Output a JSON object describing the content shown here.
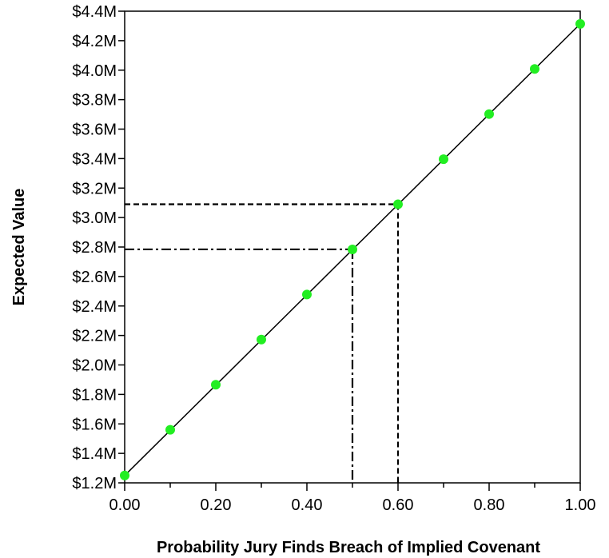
{
  "chart_data": {
    "type": "scatter",
    "title": "",
    "xlabel": "Probability Jury Finds Breach of Implied Covenant",
    "ylabel": "Expected Value",
    "xlim": [
      0,
      1
    ],
    "ylim": [
      1.2,
      4.4
    ],
    "x_ticks": [
      0,
      0.2,
      0.4,
      0.6,
      0.8,
      1.0
    ],
    "x_tick_labels": [
      "0.00",
      "0.20",
      "0.40",
      "0.60",
      "0.80",
      "1.00"
    ],
    "y_ticks": [
      1.2,
      1.4,
      1.6,
      1.8,
      2.0,
      2.2,
      2.4,
      2.6,
      2.8,
      3.0,
      3.2,
      3.4,
      3.6,
      3.8,
      4.0,
      4.2,
      4.4
    ],
    "y_tick_labels": [
      "$1.2M",
      "$1.4M",
      "$1.6M",
      "$1.8M",
      "$2.0M",
      "$2.2M",
      "$2.4M",
      "$2.6M",
      "$2.8M",
      "$3.0M",
      "$3.2M",
      "$3.4M",
      "$3.6M",
      "$3.8M",
      "$4.0M",
      "$4.2M",
      "$4.4M"
    ],
    "x_minor_ticks": [
      0.1,
      0.3,
      0.5,
      0.7,
      0.9
    ],
    "points": {
      "x": [
        0,
        0.1,
        0.2,
        0.3,
        0.4,
        0.5,
        0.6,
        0.7,
        0.8,
        0.9,
        1.0
      ],
      "y": [
        1.25,
        1.56,
        1.866,
        2.172,
        2.478,
        2.784,
        3.09,
        3.396,
        3.702,
        4.008,
        4.314
      ],
      "color": "#22ee22"
    },
    "trend_line": {
      "from": [
        0,
        1.25
      ],
      "to": [
        1.0,
        4.314
      ],
      "color": "#000000"
    },
    "reference_lines": [
      {
        "x": 0.5,
        "y": 2.784,
        "style": "dash-dot"
      },
      {
        "x": 0.6,
        "y": 3.09,
        "style": "dashed"
      }
    ],
    "grid": false,
    "legend": "none"
  }
}
